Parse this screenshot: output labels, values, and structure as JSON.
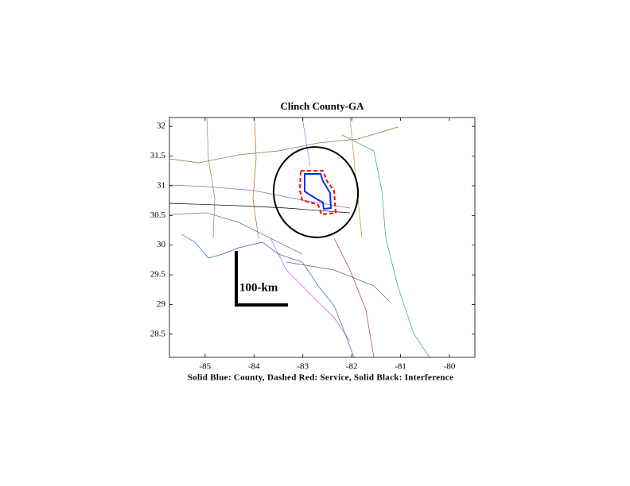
{
  "map": {
    "title": "Clinch County-GA",
    "xlabel": "Solid Blue: County, Dashed Red: Service, Solid Black: Interference",
    "scale_label": "100-km",
    "xlim": [
      -85.73,
      -79.48
    ],
    "ylim": [
      28.11,
      32.15
    ],
    "xticks": [
      -85,
      -84,
      -83,
      -82,
      -81,
      -80
    ],
    "yticks": [
      28.5,
      29,
      29.5,
      30,
      30.5,
      31,
      31.5,
      32
    ]
  }
}
